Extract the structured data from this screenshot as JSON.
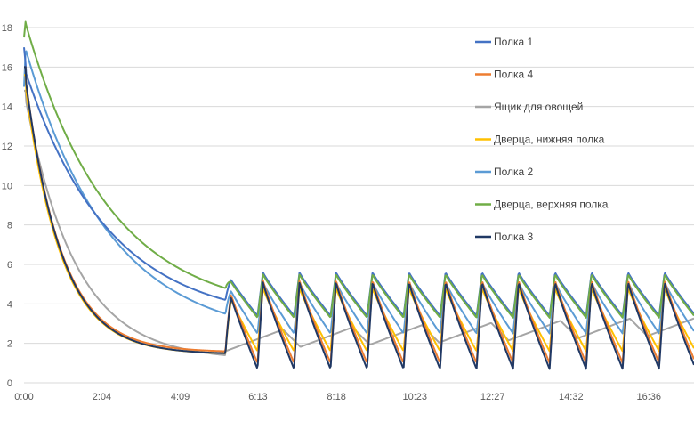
{
  "chart_data": {
    "type": "line",
    "title": "",
    "xlabel": "",
    "ylabel": "",
    "ylim": [
      0,
      18
    ],
    "xlim_hours": [
      0,
      17.8
    ],
    "y_ticks": [
      "0",
      "2",
      "4",
      "6",
      "8",
      "10",
      "12",
      "14",
      "16",
      "18"
    ],
    "x_ticks": [
      "0:00",
      "2:04",
      "4:09",
      "6:13",
      "8:18",
      "10:23",
      "12:27",
      "14:32",
      "16:36"
    ],
    "grid": "horizontal",
    "legend_position": "right",
    "series": [
      {
        "name": "Полка 1",
        "color": "#4472C4",
        "initial": 17.0,
        "start_peak": 16.0,
        "end_of_pulldown": 4.2,
        "cycle_peak": 5.6,
        "cycle_trough": 3.4,
        "cycles": 13
      },
      {
        "name": "Полка 4",
        "color": "#ED7D31",
        "initial": 16.0,
        "start_peak": 16.0,
        "end_of_pulldown": 1.6,
        "cycle_peak": 5.2,
        "cycle_trough": 1.0,
        "cycles": 13
      },
      {
        "name": "Ящик для овощей",
        "color": "#A5A5A5",
        "initial": 14.8,
        "start_peak": 14.8,
        "end_of_pulldown": 1.4,
        "cycle_peak": 3.0,
        "cycle_trough": 1.7,
        "cycles": 7
      },
      {
        "name": "Дверца, нижняя полка",
        "color": "#FFC000",
        "initial": 15.6,
        "start_peak": 15.6,
        "end_of_pulldown": 1.5,
        "cycle_peak": 4.8,
        "cycle_trough": 1.6,
        "cycles": 13
      },
      {
        "name": "Полка 2",
        "color": "#5B9BD5",
        "initial": 15.0,
        "start_peak": 17.2,
        "end_of_pulldown": 3.5,
        "cycle_peak": 5.1,
        "cycle_trough": 2.5,
        "cycles": 13
      },
      {
        "name": "Дверца, верхняя полка",
        "color": "#70AD47",
        "initial": 17.5,
        "start_peak": 18.5,
        "end_of_pulldown": 4.8,
        "cycle_peak": 5.5,
        "cycle_trough": 3.3,
        "cycles": 13
      },
      {
        "name": "Полка 3",
        "color": "#203864",
        "initial": 16.0,
        "start_peak": 16.0,
        "end_of_pulldown": 1.5,
        "cycle_peak": 5.1,
        "cycle_trough": 0.7,
        "cycles": 13
      }
    ]
  }
}
